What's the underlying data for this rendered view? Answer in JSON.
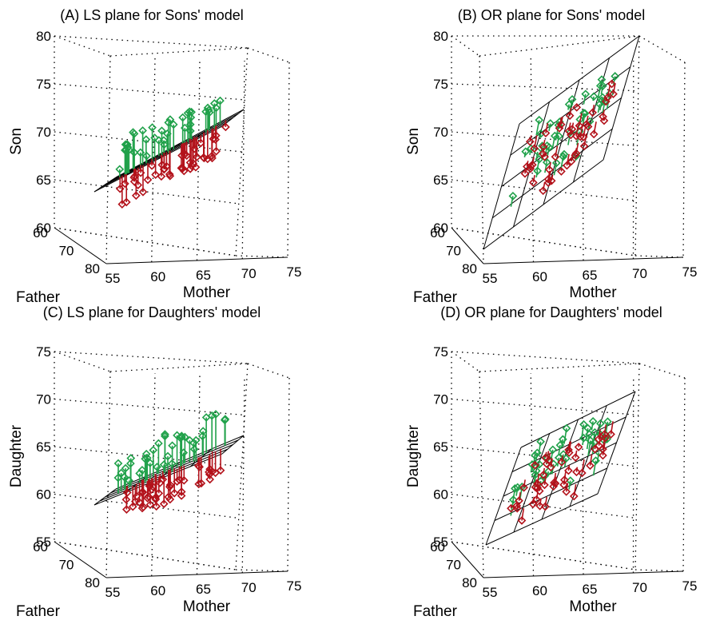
{
  "colors": {
    "above": "#20a14a",
    "below": "#b3121b",
    "plane": "#000000",
    "grid": "#000000"
  },
  "chart_data": [
    {
      "type": "scatter",
      "title": "(A) LS plane for Sons' model",
      "xlabel": "Mother",
      "ylabel": "Father",
      "zlabel": "Son",
      "x_ticks": [
        "55",
        "60",
        "65",
        "70",
        "75"
      ],
      "y_ticks": [
        "60",
        "70",
        "80"
      ],
      "z_ticks": [
        "60",
        "65",
        "70",
        "75",
        "80"
      ],
      "xlim": [
        55,
        75
      ],
      "ylim": [
        60,
        80
      ],
      "zlim": [
        60,
        80
      ],
      "grid": true,
      "plane": "least-squares",
      "series": [
        {
          "color": "green",
          "points_approx": 40
        },
        {
          "color": "red",
          "points_approx": 45
        }
      ]
    },
    {
      "type": "scatter",
      "title": "(B) OR plane for Sons' model",
      "xlabel": "Mother",
      "ylabel": "Father",
      "zlabel": "Son",
      "x_ticks": [
        "55",
        "60",
        "65",
        "70",
        "75"
      ],
      "y_ticks": [
        "60",
        "70",
        "80"
      ],
      "z_ticks": [
        "60",
        "65",
        "70",
        "75",
        "80"
      ],
      "xlim": [
        55,
        75
      ],
      "ylim": [
        60,
        80
      ],
      "zlim": [
        60,
        80
      ],
      "grid": true,
      "plane": "orthogonal-regression",
      "series": [
        {
          "color": "green",
          "points_approx": 40
        },
        {
          "color": "red",
          "points_approx": 45
        }
      ]
    },
    {
      "type": "scatter",
      "title": "(C) LS plane for Daughters' model",
      "xlabel": "Mother",
      "ylabel": "Father",
      "zlabel": "Daughter",
      "x_ticks": [
        "55",
        "60",
        "65",
        "70",
        "75"
      ],
      "y_ticks": [
        "60",
        "70",
        "80"
      ],
      "z_ticks": [
        "55",
        "60",
        "65",
        "70",
        "75"
      ],
      "xlim": [
        55,
        75
      ],
      "ylim": [
        60,
        80
      ],
      "zlim": [
        55,
        75
      ],
      "grid": true,
      "plane": "least-squares",
      "series": [
        {
          "color": "green",
          "points_approx": 40
        },
        {
          "color": "red",
          "points_approx": 45
        }
      ]
    },
    {
      "type": "scatter",
      "title": "(D) OR plane for Daughters' model",
      "xlabel": "Mother",
      "ylabel": "Father",
      "zlabel": "Daughter",
      "x_ticks": [
        "55",
        "60",
        "65",
        "70",
        "75"
      ],
      "y_ticks": [
        "60",
        "70",
        "80"
      ],
      "z_ticks": [
        "55",
        "60",
        "65",
        "70",
        "75"
      ],
      "xlim": [
        55,
        75
      ],
      "ylim": [
        60,
        80
      ],
      "zlim": [
        55,
        75
      ],
      "grid": true,
      "plane": "orthogonal-regression",
      "series": [
        {
          "color": "green",
          "points_approx": 40
        },
        {
          "color": "red",
          "points_approx": 45
        }
      ]
    }
  ]
}
